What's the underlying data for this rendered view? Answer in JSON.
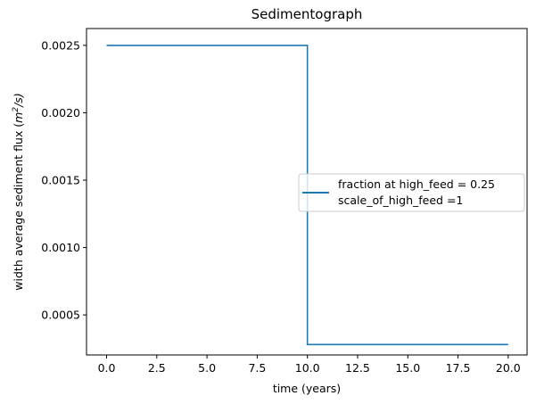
{
  "chart_data": {
    "type": "line",
    "title": "Sedimentograph",
    "xlabel": "time (years)",
    "ylabel_prefix": "width average sediment flux (",
    "ylabel_unit_base": "m",
    "ylabel_unit_exp": "2",
    "ylabel_unit_tail": "/s)",
    "xlim": [
      -1,
      20.94
    ],
    "ylim": [
      0.000203,
      0.002625
    ],
    "x_ticks": [
      0.0,
      2.5,
      5.0,
      7.5,
      10.0,
      12.5,
      15.0,
      17.5,
      20.0
    ],
    "x_tick_labels": [
      "0.0",
      "2.5",
      "5.0",
      "7.5",
      "10.0",
      "12.5",
      "15.0",
      "17.5",
      "20.0"
    ],
    "y_ticks": [
      0.0005,
      0.001,
      0.0015,
      0.002,
      0.0025
    ],
    "y_tick_labels": [
      "0.0005",
      "0.0010",
      "0.0015",
      "0.0020",
      "0.0025"
    ],
    "grid": false,
    "legend_position": "center-right",
    "series": [
      {
        "name": "fraction at high_feed = 0.25\nscale_of_high_feed =1",
        "legend_line1": "fraction at high_feed = 0.25",
        "legend_line2": "scale_of_high_feed =1",
        "color": "#1f77b4",
        "x": [
          0.0,
          10.0,
          10.0,
          20.0
        ],
        "y": [
          0.0025,
          0.0025,
          0.00028,
          0.00028
        ]
      }
    ]
  }
}
